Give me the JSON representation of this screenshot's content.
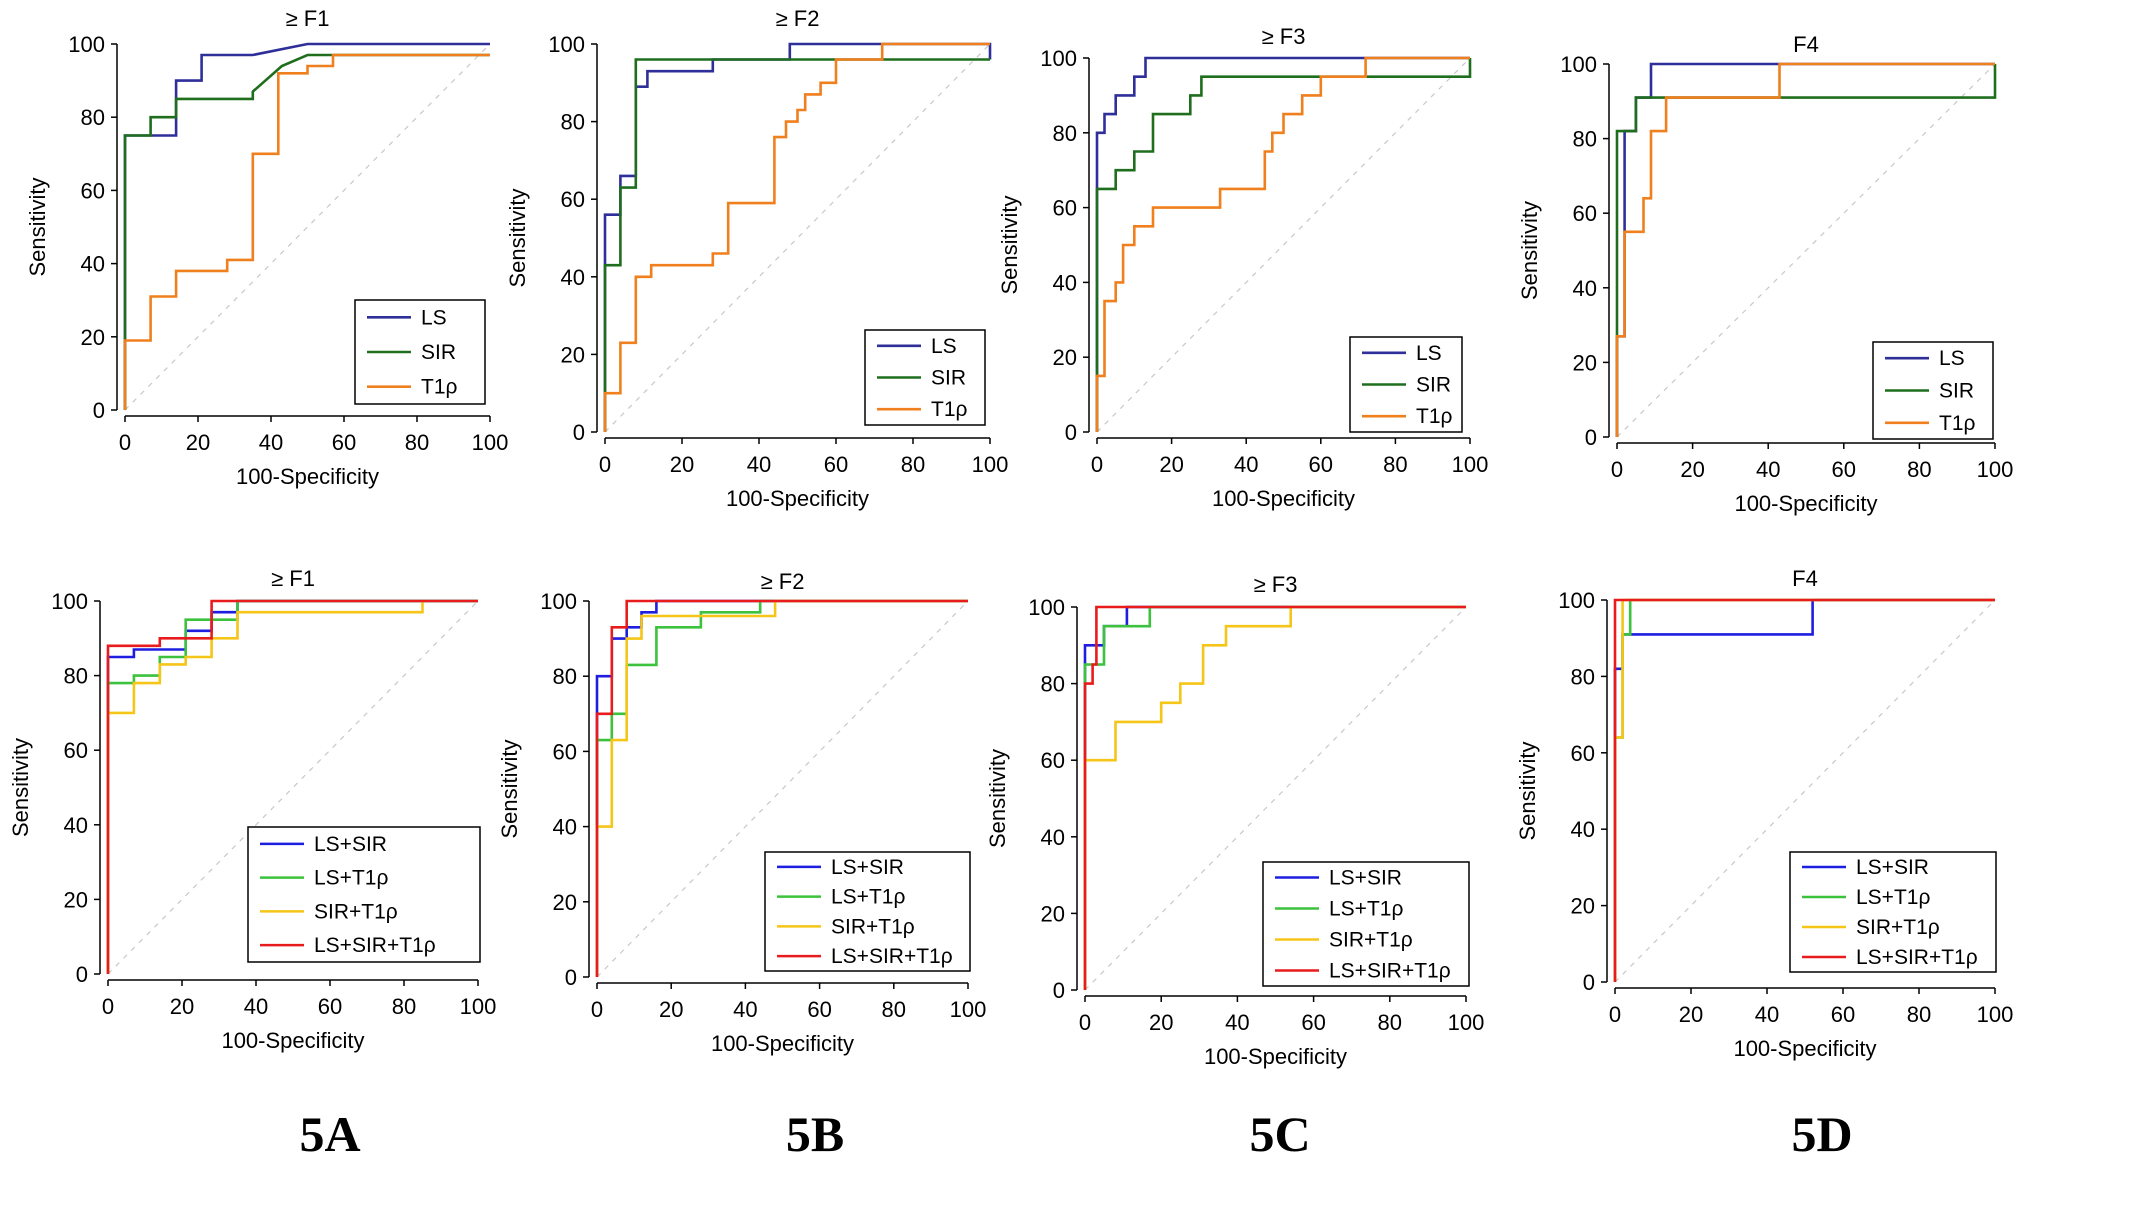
{
  "figure_labels": [
    "5A",
    "5B",
    "5C",
    "5D"
  ],
  "chart_data": [
    {
      "type": "line",
      "title": "≥ F1",
      "xlabel": "100-Specificity",
      "ylabel": "Sensitivity",
      "xlim": [
        0,
        100
      ],
      "ylim": [
        0,
        100
      ],
      "xticks": [
        "0",
        "20",
        "40",
        "60",
        "80",
        "100"
      ],
      "yticks": [
        "0",
        "20",
        "40",
        "60",
        "80",
        "100"
      ],
      "series": [
        {
          "name": "LS",
          "color": "#2f2f9a",
          "x": [
            0,
            0,
            7,
            7,
            14,
            14,
            21,
            21,
            35,
            50,
            100
          ],
          "y": [
            0,
            75,
            75,
            75,
            75,
            90,
            90,
            97,
            97,
            100,
            100
          ]
        },
        {
          "name": "SIR",
          "color": "#1e6e1e",
          "x": [
            0,
            0,
            7,
            7,
            14,
            14,
            35,
            35,
            43,
            50,
            100
          ],
          "y": [
            0,
            75,
            75,
            80,
            80,
            85,
            85,
            87,
            94,
            97,
            97
          ]
        },
        {
          "name": "T1ρ",
          "color": "#f07f1e",
          "x": [
            0,
            0,
            7,
            7,
            14,
            14,
            28,
            28,
            35,
            35,
            42,
            42,
            50,
            50,
            57,
            57,
            100
          ],
          "y": [
            0,
            19,
            19,
            31,
            31,
            38,
            38,
            41,
            41,
            70,
            70,
            92,
            92,
            94,
            94,
            97,
            97
          ]
        }
      ]
    },
    {
      "type": "line",
      "title": "≥ F2",
      "xlabel": "100-Specificity",
      "ylabel": "Sensitivity",
      "xlim": [
        0,
        100
      ],
      "ylim": [
        0,
        100
      ],
      "xticks": [
        "0",
        "20",
        "40",
        "60",
        "80",
        "100"
      ],
      "yticks": [
        "0",
        "20",
        "40",
        "60",
        "80",
        "100"
      ],
      "series": [
        {
          "name": "LS",
          "color": "#2f2f9a",
          "x": [
            0,
            0,
            4,
            4,
            8,
            8,
            11,
            11,
            28,
            28,
            48,
            48,
            100,
            100
          ],
          "y": [
            0,
            56,
            56,
            66,
            66,
            89,
            89,
            93,
            93,
            96,
            96,
            100,
            100,
            96
          ]
        },
        {
          "name": "SIR",
          "color": "#1e6e1e",
          "x": [
            0,
            0,
            4,
            4,
            8,
            8,
            100
          ],
          "y": [
            0,
            43,
            43,
            63,
            63,
            96,
            96
          ]
        },
        {
          "name": "T1ρ",
          "color": "#f07f1e",
          "x": [
            0,
            0,
            4,
            4,
            8,
            8,
            12,
            12,
            28,
            28,
            32,
            32,
            44,
            44,
            47,
            47,
            50,
            50,
            52,
            52,
            56,
            56,
            60,
            60,
            72,
            72,
            100
          ],
          "y": [
            0,
            10,
            10,
            23,
            23,
            40,
            40,
            43,
            43,
            46,
            46,
            59,
            59,
            76,
            76,
            80,
            80,
            83,
            83,
            87,
            87,
            90,
            90,
            96,
            96,
            100,
            100
          ]
        }
      ]
    },
    {
      "type": "line",
      "title": "≥ F3",
      "xlabel": "100-Specificity",
      "ylabel": "Sensitivity",
      "xlim": [
        0,
        100
      ],
      "ylim": [
        0,
        100
      ],
      "xticks": [
        "0",
        "20",
        "40",
        "60",
        "80",
        "100"
      ],
      "yticks": [
        "0",
        "20",
        "40",
        "60",
        "80",
        "100"
      ],
      "series": [
        {
          "name": "LS",
          "color": "#2f2f9a",
          "x": [
            0,
            0,
            2,
            2,
            5,
            5,
            10,
            10,
            13,
            13,
            80,
            80,
            100
          ],
          "y": [
            0,
            80,
            80,
            85,
            85,
            90,
            90,
            95,
            95,
            100,
            100,
            100,
            100
          ]
        },
        {
          "name": "SIR",
          "color": "#1e6e1e",
          "x": [
            0,
            0,
            5,
            5,
            10,
            10,
            15,
            15,
            25,
            25,
            28,
            28,
            100,
            100
          ],
          "y": [
            0,
            65,
            65,
            70,
            70,
            75,
            75,
            85,
            85,
            90,
            90,
            95,
            95,
            100
          ]
        },
        {
          "name": "T1ρ",
          "color": "#f07f1e",
          "x": [
            0,
            0,
            2,
            2,
            5,
            5,
            7,
            7,
            10,
            10,
            15,
            15,
            33,
            33,
            45,
            45,
            47,
            47,
            50,
            50,
            55,
            55,
            60,
            60,
            72,
            72,
            80,
            80,
            100
          ],
          "y": [
            0,
            15,
            15,
            35,
            35,
            40,
            40,
            50,
            50,
            55,
            55,
            60,
            60,
            65,
            65,
            75,
            75,
            80,
            80,
            85,
            85,
            90,
            90,
            95,
            95,
            100,
            100,
            100,
            100
          ]
        }
      ]
    },
    {
      "type": "line",
      "title": "F4",
      "xlabel": "100-Specificity",
      "ylabel": "Sensitivity",
      "xlim": [
        0,
        100
      ],
      "ylim": [
        0,
        100
      ],
      "xticks": [
        "0",
        "20",
        "40",
        "60",
        "80",
        "100"
      ],
      "yticks": [
        "0",
        "20",
        "40",
        "60",
        "80",
        "100"
      ],
      "series": [
        {
          "name": "LS",
          "color": "#2f2f9a",
          "x": [
            0,
            0,
            2,
            2,
            5,
            5,
            9,
            9,
            43,
            43,
            100
          ],
          "y": [
            0,
            27,
            27,
            82,
            82,
            91,
            91,
            100,
            100,
            100,
            100
          ]
        },
        {
          "name": "SIR",
          "color": "#1e6e1e",
          "x": [
            0,
            0,
            5,
            5,
            9,
            9,
            100,
            100
          ],
          "y": [
            0,
            82,
            82,
            91,
            91,
            91,
            91,
            100
          ]
        },
        {
          "name": "T1ρ",
          "color": "#f07f1e",
          "x": [
            0,
            0,
            2,
            2,
            4,
            4,
            7,
            7,
            9,
            9,
            13,
            13,
            43,
            43,
            100
          ],
          "y": [
            0,
            27,
            27,
            55,
            55,
            55,
            55,
            64,
            64,
            82,
            82,
            91,
            91,
            100,
            100
          ]
        }
      ]
    },
    {
      "type": "line",
      "title": "≥ F1",
      "xlabel": "100-Specificity",
      "ylabel": "Sensitivity",
      "xlim": [
        0,
        100
      ],
      "ylim": [
        0,
        100
      ],
      "xticks": [
        "0",
        "20",
        "40",
        "60",
        "80",
        "100"
      ],
      "yticks": [
        "0",
        "20",
        "40",
        "60",
        "80",
        "100"
      ],
      "series": [
        {
          "name": "LS+SIR",
          "color": "#1e1ee0",
          "x": [
            0,
            0,
            7,
            7,
            14,
            14,
            21,
            21,
            28,
            28,
            35,
            35,
            100
          ],
          "y": [
            0,
            85,
            85,
            87,
            87,
            87,
            87,
            92,
            92,
            97,
            97,
            100,
            100
          ]
        },
        {
          "name": "LS+T1ρ",
          "color": "#3cc23c",
          "x": [
            0,
            0,
            7,
            7,
            14,
            14,
            21,
            21,
            28,
            28,
            35,
            35,
            100
          ],
          "y": [
            0,
            78,
            78,
            80,
            80,
            85,
            85,
            95,
            95,
            95,
            95,
            100,
            100
          ]
        },
        {
          "name": "SIR+T1ρ",
          "color": "#f5c518",
          "x": [
            0,
            0,
            7,
            7,
            14,
            14,
            21,
            21,
            28,
            28,
            35,
            35,
            85,
            85
          ],
          "y": [
            0,
            70,
            70,
            78,
            78,
            83,
            83,
            85,
            85,
            90,
            90,
            97,
            97,
            100
          ]
        },
        {
          "name": "LS+SIR+T1ρ",
          "color": "#e81c1c",
          "x": [
            0,
            0,
            14,
            14,
            28,
            28,
            100
          ],
          "y": [
            0,
            88,
            88,
            90,
            90,
            100,
            100
          ]
        }
      ]
    },
    {
      "type": "line",
      "title": "≥ F2",
      "xlabel": "100-Specificity",
      "ylabel": "Sensitivity",
      "xlim": [
        0,
        100
      ],
      "ylim": [
        0,
        100
      ],
      "xticks": [
        "0",
        "20",
        "40",
        "60",
        "80",
        "100"
      ],
      "yticks": [
        "0",
        "20",
        "40",
        "60",
        "80",
        "100"
      ],
      "series": [
        {
          "name": "LS+SIR",
          "color": "#1e1ee0",
          "x": [
            0,
            0,
            4,
            4,
            8,
            8,
            12,
            12,
            16,
            16,
            100
          ],
          "y": [
            0,
            80,
            80,
            90,
            90,
            93,
            93,
            97,
            97,
            100,
            100
          ]
        },
        {
          "name": "LS+T1ρ",
          "color": "#3cc23c",
          "x": [
            0,
            0,
            4,
            4,
            8,
            8,
            16,
            16,
            28,
            28,
            44,
            44,
            100
          ],
          "y": [
            0,
            63,
            63,
            70,
            70,
            83,
            83,
            93,
            93,
            97,
            97,
            100,
            100
          ]
        },
        {
          "name": "SIR+T1ρ",
          "color": "#f5c518",
          "x": [
            0,
            0,
            4,
            4,
            8,
            8,
            12,
            12,
            48,
            48,
            100
          ],
          "y": [
            0,
            40,
            40,
            63,
            63,
            90,
            90,
            96,
            96,
            100,
            100
          ]
        },
        {
          "name": "LS+SIR+T1ρ",
          "color": "#e81c1c",
          "x": [
            0,
            0,
            4,
            4,
            8,
            8,
            100
          ],
          "y": [
            0,
            70,
            70,
            93,
            93,
            100,
            100
          ]
        }
      ]
    },
    {
      "type": "line",
      "title": "≥ F3",
      "xlabel": "100-Specificity",
      "ylabel": "Sensitivity",
      "xlim": [
        0,
        100
      ],
      "ylim": [
        0,
        100
      ],
      "xticks": [
        "0",
        "20",
        "40",
        "60",
        "80",
        "100"
      ],
      "yticks": [
        "0",
        "20",
        "40",
        "60",
        "80",
        "100"
      ],
      "series": [
        {
          "name": "LS+SIR",
          "color": "#1e1ee0",
          "x": [
            0,
            0,
            5,
            5,
            11,
            11,
            100
          ],
          "y": [
            0,
            90,
            90,
            95,
            95,
            100,
            100
          ]
        },
        {
          "name": "LS+T1ρ",
          "color": "#3cc23c",
          "x": [
            0,
            0,
            5,
            5,
            11,
            11,
            17,
            17,
            100
          ],
          "y": [
            0,
            85,
            85,
            95,
            95,
            95,
            95,
            100,
            100
          ]
        },
        {
          "name": "SIR+T1ρ",
          "color": "#f5c518",
          "x": [
            0,
            0,
            8,
            8,
            20,
            20,
            25,
            25,
            31,
            31,
            37,
            37,
            54,
            54,
            100
          ],
          "y": [
            0,
            60,
            60,
            70,
            70,
            75,
            75,
            80,
            80,
            90,
            90,
            95,
            95,
            100,
            100
          ]
        },
        {
          "name": "LS+SIR+T1ρ",
          "color": "#e81c1c",
          "x": [
            0,
            0,
            2,
            2,
            3,
            3,
            100
          ],
          "y": [
            0,
            80,
            80,
            85,
            85,
            100,
            100
          ]
        }
      ]
    },
    {
      "type": "line",
      "title": "F4",
      "xlabel": "100-Specificity",
      "ylabel": "Sensitivity",
      "xlim": [
        0,
        100
      ],
      "ylim": [
        0,
        100
      ],
      "xticks": [
        "0",
        "20",
        "40",
        "60",
        "80",
        "100"
      ],
      "yticks": [
        "0",
        "20",
        "40",
        "60",
        "80",
        "100"
      ],
      "series": [
        {
          "name": "LS+SIR",
          "color": "#1e1ee0",
          "x": [
            0,
            0,
            2,
            2,
            52,
            52,
            100
          ],
          "y": [
            0,
            82,
            82,
            91,
            91,
            100,
            100
          ]
        },
        {
          "name": "LS+T1ρ",
          "color": "#3cc23c",
          "x": [
            0,
            0,
            2,
            2,
            4,
            4,
            100
          ],
          "y": [
            0,
            64,
            64,
            91,
            91,
            100,
            100
          ]
        },
        {
          "name": "SIR+T1ρ",
          "color": "#f5c518",
          "x": [
            0,
            0,
            2,
            2,
            100
          ],
          "y": [
            0,
            64,
            64,
            100,
            100
          ]
        },
        {
          "name": "LS+SIR+T1ρ",
          "color": "#e81c1c",
          "x": [
            0,
            0,
            100
          ],
          "y": [
            0,
            100,
            100
          ]
        }
      ]
    }
  ]
}
